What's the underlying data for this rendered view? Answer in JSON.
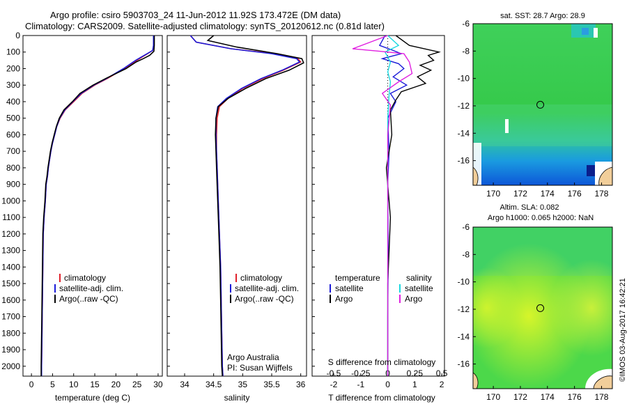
{
  "header": {
    "title_line1": "Argo profile: csiro 5903703_24 11-Jun-2012 11.92S 173.472E (DM data)",
    "title_line2": "Climatology: CARS2009. Satellite-adjusted climatology: synTS_20120612.nc (0.81d later)"
  },
  "colors": {
    "climatology": "#e0202a",
    "satellite": "#1a1ad8",
    "argo": "#000000",
    "sal_satellite": "#19d8e0",
    "sal_argo": "#e020e0"
  },
  "chart_data": [
    {
      "type": "line",
      "panel": "temperature",
      "xlabel": "temperature (deg C)",
      "xlim": [
        -2,
        31
      ],
      "xticks": [
        0,
        5,
        10,
        15,
        20,
        25,
        30
      ],
      "ylim": [
        2060,
        0
      ],
      "yticks": [
        0,
        100,
        200,
        300,
        400,
        500,
        600,
        700,
        800,
        900,
        1000,
        1100,
        1200,
        1300,
        1400,
        1500,
        1600,
        1700,
        1800,
        1900,
        2000
      ],
      "legend": [
        "climatology",
        "satellite-adj. clim.",
        "Argo(..raw -QC)"
      ],
      "series": [
        {
          "name": "climatology",
          "x": [
            29.0,
            29.0,
            28.7,
            27.5,
            26.2,
            25.0,
            22.0,
            20.0,
            18.0,
            15.0,
            12.0,
            10.0,
            8.0,
            6.8,
            6.0,
            5.5,
            5.0,
            4.6,
            4.3,
            4.0,
            3.8,
            3.5,
            3.3,
            3.0,
            2.8,
            2.7,
            2.6,
            2.5,
            2.4,
            2.4
          ],
          "depth": [
            0,
            60,
            90,
            110,
            130,
            150,
            200,
            230,
            260,
            300,
            350,
            400,
            450,
            500,
            550,
            600,
            650,
            700,
            750,
            800,
            850,
            900,
            1000,
            1100,
            1200,
            1400,
            1600,
            1800,
            2000,
            2060
          ]
        },
        {
          "name": "satellite-adj. clim.",
          "x": [
            28.9,
            28.9,
            28.7,
            27.4,
            26.0,
            24.7,
            21.8,
            19.8,
            17.8,
            14.8,
            11.8,
            9.8,
            7.9,
            6.7,
            6.0,
            5.5,
            5.0,
            4.6,
            4.3,
            4.0,
            3.8,
            3.5,
            3.3,
            3.0,
            2.8,
            2.7,
            2.6,
            2.5,
            2.4,
            2.4
          ],
          "depth": [
            0,
            60,
            90,
            110,
            130,
            150,
            200,
            230,
            260,
            300,
            350,
            400,
            450,
            500,
            550,
            600,
            650,
            700,
            750,
            800,
            850,
            900,
            1000,
            1100,
            1200,
            1400,
            1600,
            1800,
            2000,
            2060
          ]
        },
        {
          "name": "Argo(..raw -QC)",
          "x": [
            29.1,
            29.1,
            29.0,
            28.0,
            26.5,
            24.8,
            22.4,
            20.0,
            17.6,
            14.6,
            11.5,
            9.7,
            7.7,
            6.6,
            5.9,
            5.4,
            4.9,
            4.5,
            4.2,
            3.9,
            3.7,
            3.4,
            3.2,
            2.9,
            2.7,
            2.6,
            2.5,
            2.4,
            2.3,
            2.3
          ],
          "depth": [
            0,
            60,
            95,
            120,
            140,
            160,
            200,
            230,
            260,
            300,
            350,
            400,
            450,
            500,
            550,
            600,
            650,
            700,
            750,
            800,
            850,
            900,
            1000,
            1100,
            1200,
            1400,
            1600,
            1800,
            2000,
            2060
          ]
        }
      ]
    },
    {
      "type": "line",
      "panel": "salinity",
      "xlabel": "salinity",
      "xlim": [
        33.7,
        36.1
      ],
      "xticks": [
        34,
        34.5,
        35,
        35.5,
        36
      ],
      "xticklabels": [
        "34",
        "34.5",
        "35",
        "35.5",
        "36"
      ],
      "ylim": [
        2060,
        0
      ],
      "legend": [
        "climatology",
        "satellite-adj. clim.",
        "Argo(..raw -QC)"
      ],
      "annotation": [
        "Argo Australia",
        "PI: Susan Wijffels"
      ],
      "series": [
        {
          "name": "climatology",
          "x": [
            34.1,
            34.2,
            34.8,
            35.55,
            35.95,
            36.0,
            35.7,
            35.35,
            35.0,
            34.75,
            34.6,
            34.56,
            34.55,
            34.55,
            34.56,
            34.58,
            34.6,
            34.62,
            34.63,
            34.64,
            34.65,
            34.66
          ],
          "depth": [
            0,
            40,
            80,
            110,
            140,
            160,
            210,
            260,
            320,
            380,
            430,
            500,
            600,
            700,
            800,
            1000,
            1200,
            1400,
            1600,
            1800,
            2000,
            2060
          ]
        },
        {
          "name": "satellite-adj. clim.",
          "x": [
            34.1,
            34.2,
            34.8,
            35.5,
            35.93,
            35.98,
            35.68,
            35.32,
            34.98,
            34.72,
            34.57,
            34.54,
            34.54,
            34.55,
            34.56,
            34.58,
            34.6,
            34.62,
            34.63,
            34.64,
            34.65,
            34.66
          ],
          "depth": [
            0,
            40,
            80,
            110,
            140,
            160,
            210,
            260,
            320,
            380,
            430,
            500,
            600,
            700,
            800,
            1000,
            1200,
            1400,
            1600,
            1800,
            2000,
            2060
          ]
        },
        {
          "name": "Argo(..raw -QC)",
          "x": [
            34.5,
            34.4,
            34.9,
            35.6,
            36.02,
            36.05,
            35.8,
            35.4,
            35.05,
            34.75,
            34.58,
            34.54,
            34.53,
            34.54,
            34.55,
            34.57,
            34.59,
            34.61,
            34.62,
            34.63,
            34.64,
            34.65
          ],
          "depth": [
            0,
            30,
            70,
            110,
            140,
            165,
            210,
            260,
            320,
            380,
            430,
            500,
            600,
            700,
            800,
            1000,
            1200,
            1400,
            1600,
            1800,
            2000,
            2060
          ]
        }
      ]
    },
    {
      "type": "line",
      "panel": "differences",
      "xlabel": "T difference from climatology",
      "xlabel_top": "S difference from climatology",
      "xlim": [
        -2.8,
        2.1
      ],
      "xticks": [
        -2,
        -1,
        0,
        1,
        2
      ],
      "xticks_S": [
        -0.5,
        -0.25,
        0,
        0.25,
        0.5
      ],
      "xticklabels_S": [
        "-0.5",
        "-0.25",
        "0",
        "0.25",
        "0.5"
      ],
      "ylim": [
        2060,
        0
      ],
      "legend_temperature_title": "temperature",
      "legend_salinity_title": "salinity",
      "legend": [
        "satellite",
        "Argo",
        "satellite",
        "Argo"
      ],
      "series": [
        {
          "name": "temperature satellite",
          "x": [
            -0.1,
            -0.3,
            0.2,
            0.5,
            -0.2,
            0.4,
            0.6,
            0.2,
            0.7,
            0.1,
            0.3,
            0.0,
            0.05,
            0.0,
            0.02,
            0.0,
            0.0
          ],
          "depth": [
            0,
            60,
            90,
            110,
            140,
            170,
            200,
            250,
            300,
            350,
            400,
            500,
            700,
            900,
            1300,
            1700,
            2060
          ]
        },
        {
          "name": "temperature Argo",
          "x": [
            0.3,
            0.8,
            1.9,
            1.5,
            1.7,
            1.2,
            1.6,
            1.1,
            1.4,
            0.5,
            0.3,
            0.1,
            0.15,
            -0.05,
            0.1,
            0.0,
            0.0
          ],
          "depth": [
            0,
            60,
            100,
            120,
            150,
            180,
            210,
            250,
            290,
            340,
            390,
            450,
            600,
            800,
            1100,
            1500,
            2060
          ]
        },
        {
          "name": "salinity satellite",
          "x": [
            0.0,
            0.4,
            -0.1,
            0.1,
            0.0,
            0.1,
            0.05,
            0.0,
            0.0,
            0.0
          ],
          "depth": [
            0,
            60,
            100,
            160,
            220,
            280,
            360,
            500,
            1000,
            2060
          ]
        },
        {
          "name": "salinity Argo",
          "x": [
            0.0,
            -1.3,
            -0.3,
            0.6,
            0.8,
            0.9,
            0.4,
            -0.2,
            0.1,
            0.0,
            0.0
          ],
          "depth": [
            0,
            80,
            95,
            110,
            160,
            230,
            280,
            350,
            420,
            600,
            2060
          ]
        }
      ]
    },
    {
      "type": "heatmap",
      "panel": "map_sst",
      "title": "sat. SST: 28.7  Argo: 28.9",
      "xticks": [
        170,
        172,
        174,
        176,
        178
      ],
      "yticks": [
        -6,
        -8,
        -10,
        -12,
        -14,
        -16
      ],
      "xlim": [
        168.5,
        178.8
      ],
      "ylim": [
        -17.8,
        -6
      ],
      "marker": {
        "lon": 173.472,
        "lat": -11.92
      }
    },
    {
      "type": "heatmap",
      "panel": "map_sla",
      "title_line1": "Altim. SLA: 0.082",
      "title_line2": "Argo h1000: 0.065 h2000: NaN",
      "xticks": [
        170,
        172,
        174,
        176,
        178
      ],
      "yticks": [
        -6,
        -8,
        -10,
        -12,
        -14,
        -16
      ],
      "xlim": [
        168.5,
        178.8
      ],
      "ylim": [
        -17.8,
        -6
      ],
      "marker": {
        "lon": 173.472,
        "lat": -11.92
      }
    }
  ],
  "credit": "©IMOS 03-Aug-2017 16:42:21"
}
